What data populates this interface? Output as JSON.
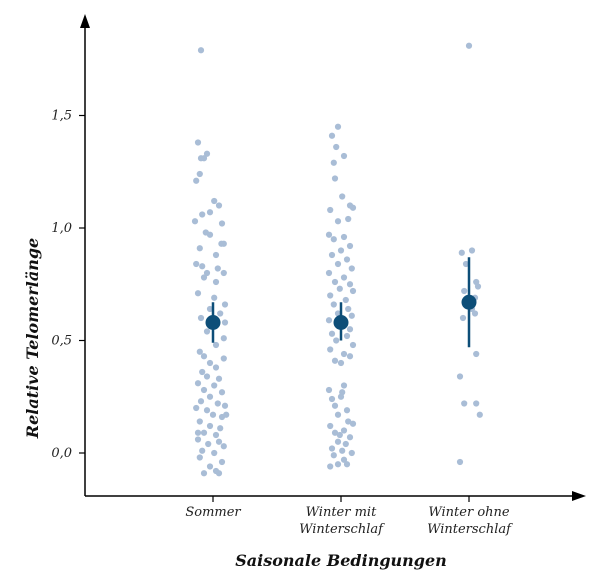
{
  "chart_data": {
    "type": "scatter",
    "title": "",
    "xlabel": "Saisonale Bedingungen",
    "ylabel": "Relative Telomerlänge",
    "ylim": [
      -0.18,
      1.9
    ],
    "yticks": [
      0.0,
      0.5,
      1.0,
      1.5
    ],
    "ytick_labels": [
      "0,0",
      "0,5",
      "1,0",
      "1,5"
    ],
    "grid": false,
    "categories": [
      {
        "lines": [
          "Sommer"
        ]
      },
      {
        "lines": [
          "Winter mit",
          "Winterschlaf"
        ]
      },
      {
        "lines": [
          "Winter ohne",
          "Winterschlaf"
        ]
      }
    ],
    "colors": {
      "points": "#a9bdd6",
      "mean": "#0d4e78",
      "axis": "#000000"
    },
    "groups": [
      {
        "mean": 0.58,
        "ci": [
          0.49,
          0.67
        ],
        "points": [
          [
            -0.2,
            1.79
          ],
          [
            -0.25,
            1.38
          ],
          [
            -0.1,
            1.33
          ],
          [
            -0.2,
            1.31
          ],
          [
            -0.15,
            1.31
          ],
          [
            -0.28,
            1.21
          ],
          [
            -0.22,
            1.24
          ],
          [
            0.02,
            1.12
          ],
          [
            0.1,
            1.1
          ],
          [
            -0.05,
            1.07
          ],
          [
            -0.18,
            1.06
          ],
          [
            0.15,
            1.02
          ],
          [
            -0.3,
            1.03
          ],
          [
            -0.12,
            0.98
          ],
          [
            -0.05,
            0.97
          ],
          [
            0.14,
            0.93
          ],
          [
            0.18,
            0.93
          ],
          [
            -0.22,
            0.91
          ],
          [
            0.05,
            0.88
          ],
          [
            -0.28,
            0.84
          ],
          [
            -0.18,
            0.83
          ],
          [
            0.08,
            0.82
          ],
          [
            -0.1,
            0.8
          ],
          [
            0.18,
            0.8
          ],
          [
            -0.15,
            0.78
          ],
          [
            0.05,
            0.76
          ],
          [
            -0.25,
            0.71
          ],
          [
            0.02,
            0.69
          ],
          [
            0.2,
            0.66
          ],
          [
            -0.05,
            0.64
          ],
          [
            0.12,
            0.62
          ],
          [
            -0.2,
            0.6
          ],
          [
            0.2,
            0.58
          ],
          [
            -0.1,
            0.54
          ],
          [
            0.18,
            0.51
          ],
          [
            0.05,
            0.48
          ],
          [
            -0.22,
            0.45
          ],
          [
            -0.15,
            0.43
          ],
          [
            0.18,
            0.42
          ],
          [
            -0.05,
            0.4
          ],
          [
            0.05,
            0.38
          ],
          [
            -0.18,
            0.36
          ],
          [
            -0.1,
            0.34
          ],
          [
            0.1,
            0.33
          ],
          [
            -0.25,
            0.31
          ],
          [
            0.02,
            0.3
          ],
          [
            -0.15,
            0.28
          ],
          [
            0.15,
            0.27
          ],
          [
            -0.05,
            0.25
          ],
          [
            -0.2,
            0.23
          ],
          [
            0.08,
            0.22
          ],
          [
            0.2,
            0.21
          ],
          [
            -0.1,
            0.19
          ],
          [
            0.0,
            0.17
          ],
          [
            0.15,
            0.16
          ],
          [
            -0.22,
            0.14
          ],
          [
            -0.05,
            0.12
          ],
          [
            0.12,
            0.11
          ],
          [
            -0.15,
            0.09
          ],
          [
            0.05,
            0.08
          ],
          [
            -0.25,
            0.06
          ],
          [
            0.1,
            0.05
          ],
          [
            -0.08,
            0.04
          ],
          [
            0.18,
            0.03
          ],
          [
            -0.18,
            0.01
          ],
          [
            0.02,
            0.0
          ],
          [
            -0.22,
            -0.02
          ],
          [
            0.15,
            -0.04
          ],
          [
            -0.05,
            -0.06
          ],
          [
            0.05,
            -0.08
          ],
          [
            -0.15,
            -0.09
          ],
          [
            0.1,
            -0.09
          ],
          [
            -0.25,
            0.09
          ],
          [
            0.22,
            0.17
          ],
          [
            -0.28,
            0.2
          ]
        ]
      },
      {
        "mean": 0.58,
        "ci": [
          0.5,
          0.67
        ],
        "points": [
          [
            -0.05,
            1.45
          ],
          [
            -0.15,
            1.41
          ],
          [
            -0.08,
            1.36
          ],
          [
            0.05,
            1.32
          ],
          [
            -0.12,
            1.29
          ],
          [
            -0.1,
            1.22
          ],
          [
            0.02,
            1.14
          ],
          [
            0.15,
            1.1
          ],
          [
            -0.18,
            1.08
          ],
          [
            0.12,
            1.04
          ],
          [
            -0.05,
            1.03
          ],
          [
            0.2,
            1.09
          ],
          [
            -0.2,
            0.97
          ],
          [
            0.05,
            0.96
          ],
          [
            -0.12,
            0.95
          ],
          [
            0.15,
            0.92
          ],
          [
            0.0,
            0.9
          ],
          [
            -0.15,
            0.88
          ],
          [
            0.1,
            0.86
          ],
          [
            -0.05,
            0.84
          ],
          [
            0.18,
            0.82
          ],
          [
            -0.2,
            0.8
          ],
          [
            0.05,
            0.78
          ],
          [
            -0.1,
            0.76
          ],
          [
            0.15,
            0.75
          ],
          [
            -0.02,
            0.73
          ],
          [
            0.2,
            0.72
          ],
          [
            -0.18,
            0.7
          ],
          [
            0.08,
            0.68
          ],
          [
            -0.12,
            0.66
          ],
          [
            0.12,
            0.64
          ],
          [
            -0.05,
            0.62
          ],
          [
            0.18,
            0.61
          ],
          [
            -0.2,
            0.59
          ],
          [
            0.02,
            0.57
          ],
          [
            0.15,
            0.55
          ],
          [
            -0.15,
            0.53
          ],
          [
            0.1,
            0.52
          ],
          [
            -0.08,
            0.5
          ],
          [
            0.2,
            0.48
          ],
          [
            -0.18,
            0.46
          ],
          [
            0.05,
            0.44
          ],
          [
            0.15,
            0.43
          ],
          [
            -0.1,
            0.41
          ],
          [
            0.0,
            0.4
          ],
          [
            0.05,
            0.3
          ],
          [
            0.02,
            0.27
          ],
          [
            -0.15,
            0.24
          ],
          [
            -0.1,
            0.21
          ],
          [
            0.1,
            0.19
          ],
          [
            -0.05,
            0.17
          ],
          [
            0.12,
            0.14
          ],
          [
            -0.18,
            0.12
          ],
          [
            0.05,
            0.1
          ],
          [
            -0.1,
            0.09
          ],
          [
            0.15,
            0.07
          ],
          [
            -0.05,
            0.05
          ],
          [
            0.08,
            0.04
          ],
          [
            -0.15,
            0.02
          ],
          [
            0.02,
            0.01
          ],
          [
            0.18,
            0.0
          ],
          [
            -0.12,
            -0.01
          ],
          [
            0.05,
            -0.03
          ],
          [
            -0.05,
            -0.05
          ],
          [
            0.1,
            -0.05
          ],
          [
            -0.18,
            -0.06
          ],
          [
            0.0,
            0.25
          ],
          [
            -0.2,
            0.28
          ],
          [
            0.2,
            0.13
          ],
          [
            -0.02,
            0.08
          ]
        ]
      },
      {
        "mean": 0.67,
        "ci": [
          0.47,
          0.87
        ],
        "points": [
          [
            0.0,
            1.81
          ],
          [
            -0.12,
            0.89
          ],
          [
            0.05,
            0.9
          ],
          [
            -0.05,
            0.84
          ],
          [
            0.12,
            0.76
          ],
          [
            0.15,
            0.74
          ],
          [
            -0.08,
            0.72
          ],
          [
            0.1,
            0.69
          ],
          [
            -0.05,
            0.66
          ],
          [
            0.05,
            0.64
          ],
          [
            0.1,
            0.62
          ],
          [
            -0.1,
            0.6
          ],
          [
            0.12,
            0.44
          ],
          [
            -0.15,
            0.34
          ],
          [
            -0.08,
            0.22
          ],
          [
            0.12,
            0.22
          ],
          [
            0.18,
            0.17
          ],
          [
            -0.15,
            -0.04
          ]
        ]
      }
    ]
  }
}
